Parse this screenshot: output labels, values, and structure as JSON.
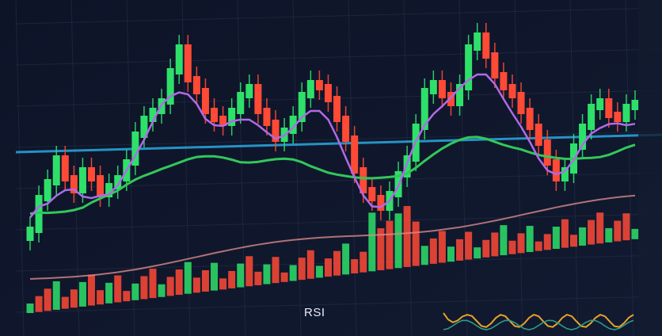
{
  "chart": {
    "theme": {
      "background": "#0f1629",
      "grid": "#243047",
      "bull": "#2ee06a",
      "bear": "#ff4a36",
      "ma_fast": "#b06ae8",
      "ma_slow": "#33c75a",
      "ma_long": "#d88a8a",
      "horizontal_line": "#2aa8e0",
      "rsi_line": "#e8a22a"
    },
    "rsi_label": "RSI"
  },
  "chart_data": {
    "type": "candlestick",
    "candles_count": 70,
    "moving_averages": [
      "fast",
      "slow",
      "long"
    ],
    "volume_bars": true,
    "indicator": "RSI"
  }
}
